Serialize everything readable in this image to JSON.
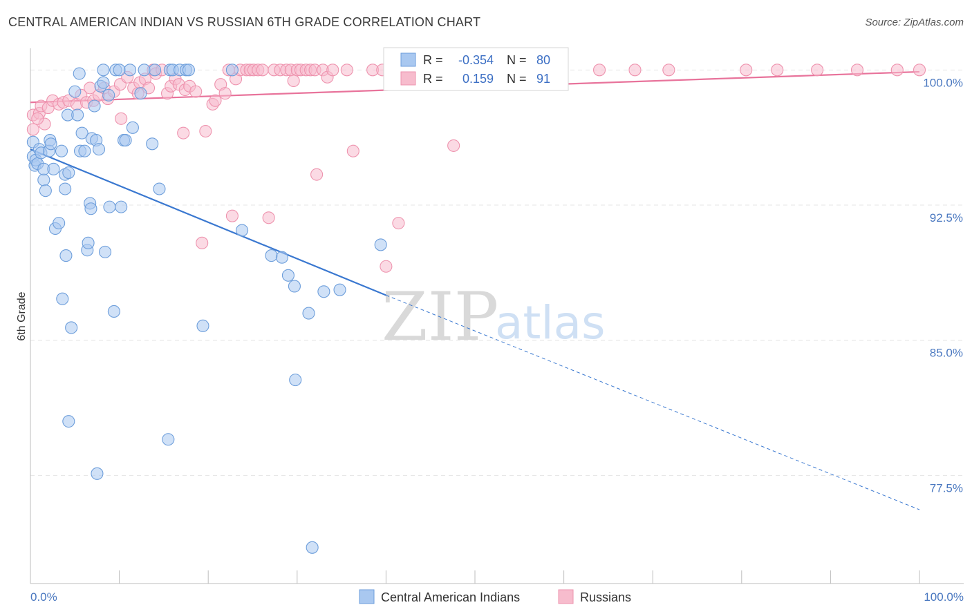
{
  "title": "CENTRAL AMERICAN INDIAN VS RUSSIAN 6TH GRADE CORRELATION CHART",
  "source": "Source: ZipAtlas.com",
  "watermark": {
    "zip": "ZIP",
    "atlas": "atlas"
  },
  "colors": {
    "blue_fill": "#a9c8f0",
    "blue_stroke": "#6d9edb",
    "blue_line": "#3a78d0",
    "pink_fill": "#f7bccd",
    "pink_stroke": "#ee93ae",
    "pink_line": "#e8739b",
    "grid": "#e4e4e4",
    "tick_text": "#4a78c0"
  },
  "legend_stats": {
    "blue": {
      "r_label": "R =",
      "r_value": "-0.354",
      "n_label": "N =",
      "n_value": "80"
    },
    "pink": {
      "r_label": "R =",
      "r_value": "0.159",
      "n_label": "N =",
      "n_value": "91"
    }
  },
  "chart_data": {
    "type": "scatter",
    "title": "CENTRAL AMERICAN INDIAN VS RUSSIAN 6TH GRADE CORRELATION CHART",
    "xlabel": "",
    "ylabel": "6th Grade",
    "xlim": [
      0,
      100
    ],
    "ylim": [
      71.5,
      101.2
    ],
    "x_tick_labels": [
      "0.0%",
      "100.0%"
    ],
    "y_ticks": [
      77.5,
      85.0,
      92.5,
      100.0
    ],
    "y_tick_labels": [
      "77.5%",
      "85.0%",
      "92.5%",
      "100.0%"
    ],
    "grid": true,
    "legend_position": "bottom",
    "series": [
      {
        "name": "Central American Indians",
        "color": "#a9c8f0",
        "r": -0.354,
        "n": 80,
        "trend": {
          "x": [
            0,
            40
          ],
          "y": [
            95.6,
            87.5
          ],
          "dashed_to": [
            100,
            75.6
          ]
        },
        "points": [
          [
            0.3,
            96.0
          ],
          [
            0.3,
            95.2
          ],
          [
            0.5,
            94.7
          ],
          [
            0.6,
            95.0
          ],
          [
            0.8,
            94.8
          ],
          [
            1.0,
            95.6
          ],
          [
            1.2,
            95.4
          ],
          [
            1.5,
            93.9
          ],
          [
            1.5,
            94.5
          ],
          [
            1.7,
            93.3
          ],
          [
            2.2,
            96.1
          ],
          [
            2.1,
            95.5
          ],
          [
            2.3,
            95.9
          ],
          [
            2.6,
            94.5
          ],
          [
            2.8,
            91.2
          ],
          [
            3.2,
            91.5
          ],
          [
            3.5,
            95.5
          ],
          [
            3.6,
            87.3
          ],
          [
            3.9,
            94.2
          ],
          [
            3.9,
            93.4
          ],
          [
            4.0,
            89.7
          ],
          [
            4.2,
            97.5
          ],
          [
            4.3,
            94.3
          ],
          [
            4.6,
            85.7
          ],
          [
            5.0,
            98.8
          ],
          [
            5.3,
            97.5
          ],
          [
            5.5,
            99.8
          ],
          [
            5.6,
            95.5
          ],
          [
            5.8,
            96.5
          ],
          [
            6.1,
            95.5
          ],
          [
            6.4,
            90.0
          ],
          [
            6.5,
            90.4
          ],
          [
            6.7,
            92.6
          ],
          [
            6.8,
            92.3
          ],
          [
            6.9,
            96.2
          ],
          [
            7.2,
            98.0
          ],
          [
            7.4,
            96.1
          ],
          [
            7.5,
            77.6
          ],
          [
            7.7,
            95.6
          ],
          [
            7.9,
            99.1
          ],
          [
            8.2,
            99.3
          ],
          [
            8.2,
            100.0
          ],
          [
            8.4,
            89.9
          ],
          [
            8.8,
            98.6
          ],
          [
            8.9,
            92.4
          ],
          [
            9.4,
            86.6
          ],
          [
            9.6,
            100.0
          ],
          [
            10.0,
            100.0
          ],
          [
            10.2,
            92.4
          ],
          [
            10.5,
            96.1
          ],
          [
            10.7,
            96.1
          ],
          [
            11.2,
            100.0
          ],
          [
            11.5,
            96.8
          ],
          [
            12.4,
            98.7
          ],
          [
            12.8,
            100.0
          ],
          [
            13.7,
            95.9
          ],
          [
            14.0,
            100.0
          ],
          [
            14.5,
            93.4
          ],
          [
            15.5,
            79.5
          ],
          [
            15.7,
            100.0
          ],
          [
            16.0,
            100.0
          ],
          [
            16.8,
            100.0
          ],
          [
            17.5,
            100.0
          ],
          [
            17.8,
            100.0
          ],
          [
            19.4,
            85.8
          ],
          [
            22.7,
            100.0
          ],
          [
            23.8,
            91.1
          ],
          [
            27.1,
            89.7
          ],
          [
            28.3,
            89.6
          ],
          [
            29.0,
            88.6
          ],
          [
            29.7,
            88.0
          ],
          [
            29.8,
            82.8
          ],
          [
            31.3,
            86.5
          ],
          [
            31.7,
            73.5
          ],
          [
            33.0,
            87.7
          ],
          [
            34.8,
            87.8
          ],
          [
            39.4,
            90.3
          ],
          [
            43.0,
            100.0
          ],
          [
            50.5,
            100.0
          ],
          [
            4.3,
            80.5
          ]
        ]
      },
      {
        "name": "Russians",
        "color": "#f7bccd",
        "r": 0.159,
        "n": 91,
        "trend": {
          "x": [
            0,
            100
          ],
          "y": [
            98.2,
            99.9
          ]
        },
        "points": [
          [
            0.3,
            96.7
          ],
          [
            0.3,
            97.5
          ],
          [
            1.0,
            97.6
          ],
          [
            1.2,
            98.0
          ],
          [
            1.6,
            97.0
          ],
          [
            2.0,
            97.9
          ],
          [
            2.5,
            98.3
          ],
          [
            3.2,
            98.1
          ],
          [
            3.7,
            98.2
          ],
          [
            4.3,
            98.3
          ],
          [
            5.2,
            98.1
          ],
          [
            5.7,
            98.6
          ],
          [
            6.3,
            98.2
          ],
          [
            6.7,
            99.0
          ],
          [
            7.1,
            98.3
          ],
          [
            7.7,
            98.6
          ],
          [
            8.3,
            99.0
          ],
          [
            8.7,
            98.4
          ],
          [
            9.4,
            98.8
          ],
          [
            10.1,
            99.2
          ],
          [
            10.2,
            97.3
          ],
          [
            10.9,
            99.6
          ],
          [
            11.6,
            99.0
          ],
          [
            12.1,
            98.7
          ],
          [
            12.3,
            99.3
          ],
          [
            12.9,
            99.5
          ],
          [
            13.3,
            99.0
          ],
          [
            13.8,
            100.0
          ],
          [
            14.1,
            99.8
          ],
          [
            14.8,
            100.0
          ],
          [
            15.4,
            98.7
          ],
          [
            15.8,
            99.1
          ],
          [
            16.3,
            99.5
          ],
          [
            16.7,
            99.2
          ],
          [
            17.2,
            96.5
          ],
          [
            17.4,
            98.9
          ],
          [
            17.9,
            99.1
          ],
          [
            18.6,
            98.8
          ],
          [
            19.3,
            90.4
          ],
          [
            19.7,
            96.6
          ],
          [
            20.5,
            98.1
          ],
          [
            20.8,
            98.3
          ],
          [
            21.4,
            99.2
          ],
          [
            21.9,
            98.7
          ],
          [
            22.3,
            100.0
          ],
          [
            22.7,
            91.9
          ],
          [
            23.1,
            99.5
          ],
          [
            23.6,
            100.0
          ],
          [
            24.3,
            100.0
          ],
          [
            24.7,
            100.0
          ],
          [
            25.1,
            100.0
          ],
          [
            25.6,
            100.0
          ],
          [
            26.1,
            100.0
          ],
          [
            26.8,
            91.8
          ],
          [
            27.4,
            100.0
          ],
          [
            28.1,
            100.0
          ],
          [
            28.8,
            100.0
          ],
          [
            29.3,
            100.0
          ],
          [
            29.6,
            99.4
          ],
          [
            30.0,
            100.0
          ],
          [
            30.4,
            100.0
          ],
          [
            31.0,
            100.0
          ],
          [
            31.5,
            100.0
          ],
          [
            32.0,
            100.0
          ],
          [
            32.2,
            94.2
          ],
          [
            32.9,
            100.0
          ],
          [
            33.4,
            99.6
          ],
          [
            34.0,
            100.0
          ],
          [
            35.6,
            100.0
          ],
          [
            36.3,
            95.5
          ],
          [
            38.5,
            100.0
          ],
          [
            39.6,
            100.0
          ],
          [
            40.0,
            89.1
          ],
          [
            41.3,
            100.0
          ],
          [
            41.4,
            91.5
          ],
          [
            42.0,
            100.0
          ],
          [
            43.8,
            100.0
          ],
          [
            46.8,
            100.0
          ],
          [
            47.6,
            95.8
          ],
          [
            51.7,
            100.0
          ],
          [
            58.9,
            100.0
          ],
          [
            64.0,
            100.0
          ],
          [
            68.0,
            100.0
          ],
          [
            71.8,
            100.0
          ],
          [
            80.5,
            100.0
          ],
          [
            84.0,
            100.0
          ],
          [
            88.5,
            100.0
          ],
          [
            93.0,
            100.0
          ],
          [
            97.5,
            100.0
          ],
          [
            100.0,
            100.0
          ],
          [
            0.8,
            97.3
          ]
        ]
      }
    ]
  }
}
